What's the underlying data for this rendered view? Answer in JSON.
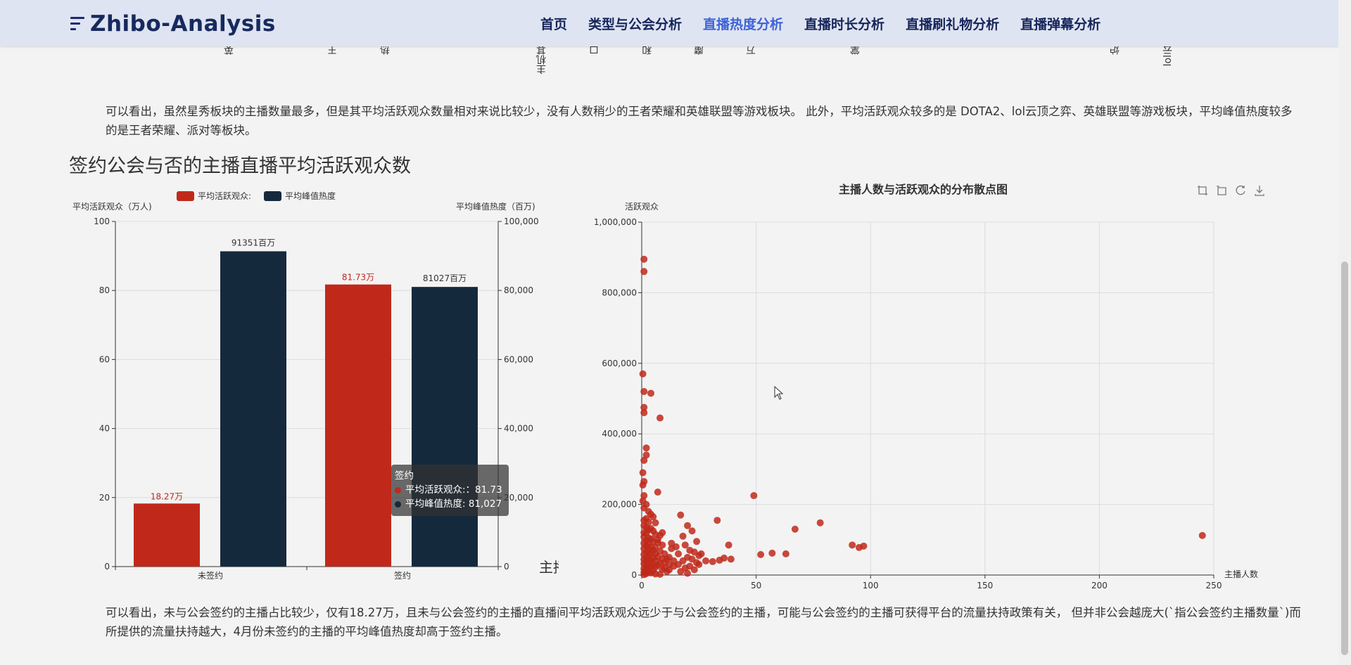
{
  "brand": {
    "name": "Zhibo-Analysis"
  },
  "nav": [
    {
      "label": "首页"
    },
    {
      "label": "类型与公会分析"
    },
    {
      "label": "直播热度分析",
      "active": true
    },
    {
      "label": "直播时长分析"
    },
    {
      "label": "直播刷礼物分析"
    },
    {
      "label": "直播弹幕分析"
    }
  ],
  "top_chart_labels": [
    "英",
    "王",
    "热",
    "主机其",
    "口",
    "和",
    "魔",
    "万",
    "掌",
    "炉",
    "lol云"
  ],
  "paragraph1": "可以看出，虽然星秀板块的主播数量最多，但是其平均活跃观众数量相对来说比较少，没有人数稍少的王者荣耀和英雄联盟等游戏板块。 此外，平均活跃观众较多的是 DOTA2、lol云顶之弈、英雄联盟等游戏板块，平均峰值热度较多的是王者荣耀、派对等板块。",
  "section_title": "签约公会与否的主播直播平均活跃观众数",
  "paragraph2": "可以看出，未与公会签约的主播占比较少，仅有18.27万，且未与公会签约的主播的直播间平均活跃观众远少于与公会签约的主播，可能与公会签约的主播可获得平台的流量扶持政策有关， 但并非公会越庞大(`指公会签约主播数量`)而所提供的流量扶持越大，4月份未签约的主播的平均峰值热度却高于签约主播。",
  "cut_title": "主播",
  "colors": {
    "red": "#c0291a",
    "navy": "#15293d",
    "active_nav": "#3e62d6"
  },
  "icons": [
    "zoom-icon",
    "zoom-reset-icon",
    "restore-icon",
    "download-icon"
  ],
  "chart_data": [
    {
      "type": "bar",
      "legend": [
        "平均活跃观众:",
        "平均峰值热度"
      ],
      "legend_position": "top",
      "categories": [
        "未签约",
        "签约"
      ],
      "y_left": {
        "label": "平均活跃观众（万人)",
        "min": 0,
        "max": 100,
        "ticks": [
          "0",
          "20",
          "40",
          "60",
          "80",
          "100"
        ]
      },
      "y_right": {
        "label": "平均峰值热度（百万)",
        "min": 0,
        "max": 100000,
        "ticks": [
          "0",
          "20,000",
          "40,000",
          "60,000",
          "80,000",
          "100,000"
        ]
      },
      "series": [
        {
          "name": "平均活跃观众:",
          "axis": "left",
          "values": [
            18.27,
            81.73
          ],
          "labels": [
            "18.27万",
            "81.73万"
          ]
        },
        {
          "name": "平均峰值热度",
          "axis": "right",
          "values": [
            91351,
            81027
          ],
          "labels": [
            "91351百万",
            "81027百万"
          ]
        }
      ],
      "tooltip": {
        "title": "签约",
        "rows": [
          "平均活跃观众:：81.73",
          "平均峰值热度: 81,027"
        ]
      },
      "grid": "horizontal"
    },
    {
      "type": "scatter",
      "title": "主播人数与活跃观众的分布散点图",
      "xlabel": "主播人数",
      "ylabel": "活跃观众",
      "xlim": [
        0,
        250
      ],
      "ylim": [
        0,
        1000000
      ],
      "x_ticks": [
        "0",
        "50",
        "100",
        "150",
        "200",
        "250"
      ],
      "y_ticks": [
        "0",
        "200,000",
        "400,000",
        "600,000",
        "800,000",
        "1,000,000"
      ],
      "grid": true,
      "points": [
        [
          1,
          895000
        ],
        [
          1,
          860000
        ],
        [
          0.5,
          570000
        ],
        [
          1,
          520000
        ],
        [
          4,
          515000
        ],
        [
          8,
          445000
        ],
        [
          1,
          475000
        ],
        [
          1,
          460000
        ],
        [
          2,
          360000
        ],
        [
          2,
          340000
        ],
        [
          1,
          325000
        ],
        [
          0.5,
          290000
        ],
        [
          1,
          265000
        ],
        [
          0.5,
          255000
        ],
        [
          7,
          235000
        ],
        [
          1,
          225000
        ],
        [
          0.5,
          210000
        ],
        [
          2,
          200000
        ],
        [
          1,
          190000
        ],
        [
          3,
          180000
        ],
        [
          4,
          172000
        ],
        [
          5,
          165000
        ],
        [
          2,
          160000
        ],
        [
          1,
          155000
        ],
        [
          3,
          150000
        ],
        [
          6,
          148000
        ],
        [
          1,
          140000
        ],
        [
          2,
          135000
        ],
        [
          4,
          132000
        ],
        [
          3,
          128000
        ],
        [
          5,
          125000
        ],
        [
          1,
          120000
        ],
        [
          2,
          118000
        ],
        [
          6,
          115000
        ],
        [
          8,
          112000
        ],
        [
          1,
          108000
        ],
        [
          3,
          105000
        ],
        [
          4,
          102000
        ],
        [
          2,
          98000
        ],
        [
          5,
          95000
        ],
        [
          7,
          92000
        ],
        [
          1,
          90000
        ],
        [
          3,
          88000
        ],
        [
          9,
          85000
        ],
        [
          2,
          82000
        ],
        [
          4,
          80000
        ],
        [
          6,
          78000
        ],
        [
          1,
          75000
        ],
        [
          3,
          72000
        ],
        [
          5,
          70000
        ],
        [
          8,
          68000
        ],
        [
          2,
          65000
        ],
        [
          4,
          62000
        ],
        [
          6,
          60000
        ],
        [
          1,
          58000
        ],
        [
          3,
          55000
        ],
        [
          7,
          52000
        ],
        [
          2,
          50000
        ],
        [
          5,
          48000
        ],
        [
          9,
          46000
        ],
        [
          1,
          44000
        ],
        [
          4,
          42000
        ],
        [
          6,
          40000
        ],
        [
          2,
          38000
        ],
        [
          3,
          36000
        ],
        [
          8,
          34000
        ],
        [
          1,
          32000
        ],
        [
          5,
          30000
        ],
        [
          7,
          28000
        ],
        [
          2,
          26000
        ],
        [
          4,
          24000
        ],
        [
          6,
          22000
        ],
        [
          3,
          20000
        ],
        [
          1,
          18000
        ],
        [
          9,
          16000
        ],
        [
          2,
          14000
        ],
        [
          5,
          12000
        ],
        [
          3,
          10000
        ],
        [
          1,
          8000
        ],
        [
          4,
          6000
        ],
        [
          2,
          4000
        ],
        [
          6,
          3000
        ],
        [
          8,
          2000
        ],
        [
          1,
          1000
        ],
        [
          10,
          60000
        ],
        [
          11,
          45000
        ],
        [
          12,
          30000
        ],
        [
          13,
          75000
        ],
        [
          10,
          20000
        ],
        [
          11,
          10000
        ],
        [
          12,
          50000
        ],
        [
          14,
          25000
        ],
        [
          13,
          90000
        ],
        [
          9,
          120000
        ],
        [
          14,
          40000
        ],
        [
          12,
          15000
        ],
        [
          7,
          100000
        ],
        [
          10,
          35000
        ],
        [
          17,
          170000
        ],
        [
          20,
          140000
        ],
        [
          22,
          125000
        ],
        [
          18,
          110000
        ],
        [
          24,
          95000
        ],
        [
          19,
          85000
        ],
        [
          15,
          80000
        ],
        [
          21,
          70000
        ],
        [
          23,
          65000
        ],
        [
          16,
          60000
        ],
        [
          25,
          55000
        ],
        [
          20,
          50000
        ],
        [
          22,
          45000
        ],
        [
          18,
          40000
        ],
        [
          24,
          35000
        ],
        [
          16,
          30000
        ],
        [
          21,
          25000
        ],
        [
          19,
          20000
        ],
        [
          23,
          15000
        ],
        [
          17,
          10000
        ],
        [
          20,
          5000
        ],
        [
          26,
          60000
        ],
        [
          28,
          40000
        ],
        [
          25,
          30000
        ],
        [
          33,
          155000
        ],
        [
          38,
          85000
        ],
        [
          36,
          48000
        ],
        [
          34,
          42000
        ],
        [
          31,
          38000
        ],
        [
          39,
          45000
        ],
        [
          49,
          225000
        ],
        [
          52,
          58000
        ],
        [
          57,
          62000
        ],
        [
          63,
          60000
        ],
        [
          67,
          130000
        ],
        [
          78,
          148000
        ],
        [
          92,
          85000
        ],
        [
          95,
          78000
        ],
        [
          97,
          82000
        ],
        [
          245,
          112000
        ]
      ]
    }
  ]
}
